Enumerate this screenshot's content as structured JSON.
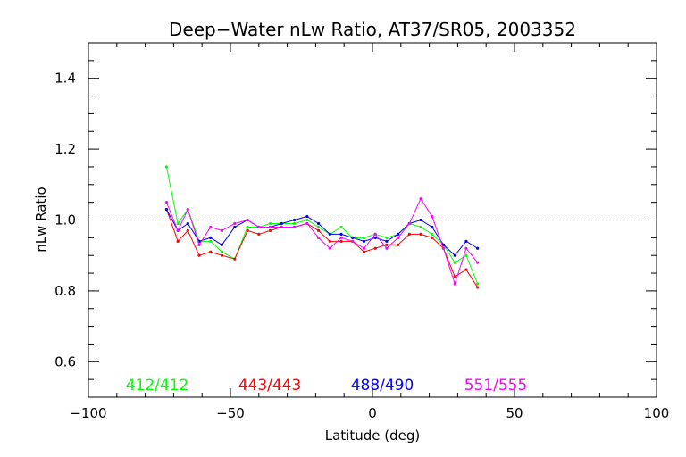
{
  "chart_data": {
    "type": "line",
    "title": "Deep−Water nLw Ratio, AT37/SR05, 2003352",
    "xlabel": "Latitude (deg)",
    "ylabel": "nLw Ratio",
    "xlim": [
      -100,
      100
    ],
    "ylim": [
      0.5,
      1.5
    ],
    "xticks": [
      -100,
      -50,
      0,
      50,
      100
    ],
    "xtick_labels": [
      "−100",
      "−50",
      "0",
      "50",
      "100"
    ],
    "yticks": [
      0.6,
      0.8,
      1.0,
      1.2,
      1.4
    ],
    "ytick_labels": [
      "0.6",
      "0.8",
      "1.0",
      "1.2",
      "1.4"
    ],
    "reference_line": 1.0,
    "grid": false,
    "legend_position": "bottom",
    "x": [
      -72.5,
      -68.5,
      -65,
      -61,
      -57,
      -53,
      -48.5,
      -44,
      -40,
      -36,
      -32,
      -27.5,
      -23,
      -19,
      -15,
      -11,
      -7,
      -3,
      1,
      5,
      9,
      13,
      17,
      21,
      25,
      29,
      33,
      37
    ],
    "series": [
      {
        "name": "412/412",
        "color": "#00ff00",
        "values": [
          1.15,
          0.99,
          1.03,
          0.94,
          0.94,
          0.91,
          0.89,
          0.98,
          0.98,
          0.99,
          0.99,
          0.99,
          1.0,
          0.98,
          0.96,
          0.98,
          0.95,
          0.95,
          0.96,
          0.95,
          0.96,
          0.99,
          0.98,
          0.96,
          0.93,
          0.88,
          0.9,
          0.82
        ]
      },
      {
        "name": "443/443",
        "color": "#ff0000",
        "values": [
          1.03,
          0.94,
          0.97,
          0.9,
          0.91,
          0.9,
          0.89,
          0.97,
          0.96,
          0.97,
          0.98,
          0.98,
          0.99,
          0.97,
          0.94,
          0.94,
          0.94,
          0.91,
          0.92,
          0.93,
          0.93,
          0.96,
          0.96,
          0.95,
          0.92,
          0.84,
          0.86,
          0.81
        ]
      },
      {
        "name": "488/490",
        "color": "#0000ff",
        "values": [
          1.03,
          0.97,
          0.99,
          0.94,
          0.95,
          0.93,
          0.98,
          1.0,
          0.98,
          0.98,
          0.99,
          1.0,
          1.01,
          0.99,
          0.96,
          0.96,
          0.95,
          0.94,
          0.95,
          0.94,
          0.96,
          0.99,
          1.0,
          0.98,
          0.93,
          0.9,
          0.94,
          0.92
        ]
      },
      {
        "name": "551/555",
        "color": "#ff00ff",
        "values": [
          1.05,
          0.97,
          1.03,
          0.93,
          0.98,
          0.97,
          0.99,
          1.0,
          0.98,
          0.98,
          0.98,
          0.98,
          0.99,
          0.95,
          0.92,
          0.95,
          0.94,
          0.92,
          0.96,
          0.92,
          0.95,
          0.99,
          1.06,
          1.01,
          0.92,
          0.82,
          0.92,
          0.88
        ]
      }
    ]
  }
}
